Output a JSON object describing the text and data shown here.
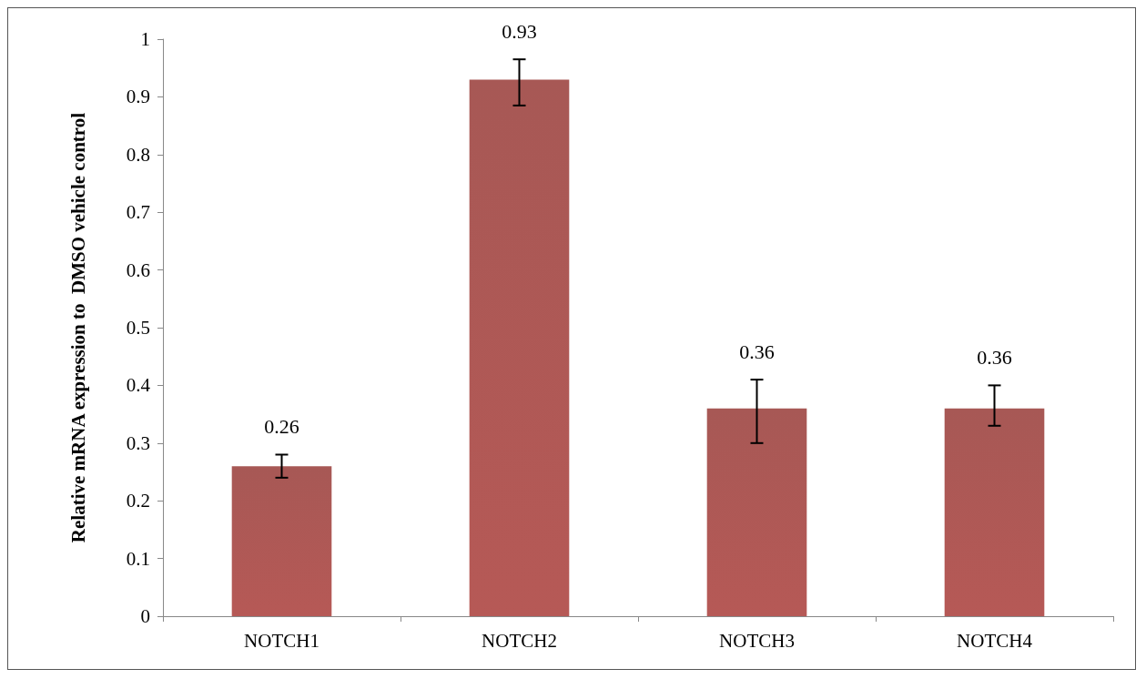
{
  "chart_data": {
    "type": "bar",
    "ylabel": "Relative mRNA expression to  DMSO vehicle control",
    "categories": [
      "NOTCH1",
      "NOTCH2",
      "NOTCH3",
      "NOTCH4"
    ],
    "values": [
      0.26,
      0.93,
      0.36,
      0.36
    ],
    "errors": [
      [
        0.24,
        0.28
      ],
      [
        0.885,
        0.965
      ],
      [
        0.3,
        0.41
      ],
      [
        0.33,
        0.4
      ]
    ],
    "color": "#a3504d",
    "data_labels": true,
    "grid": false,
    "ylim": [
      0,
      1
    ],
    "yticks": [
      0,
      0.1,
      0.2,
      0.3,
      0.4,
      0.5,
      0.6,
      0.7,
      0.8,
      0.9,
      1
    ]
  }
}
